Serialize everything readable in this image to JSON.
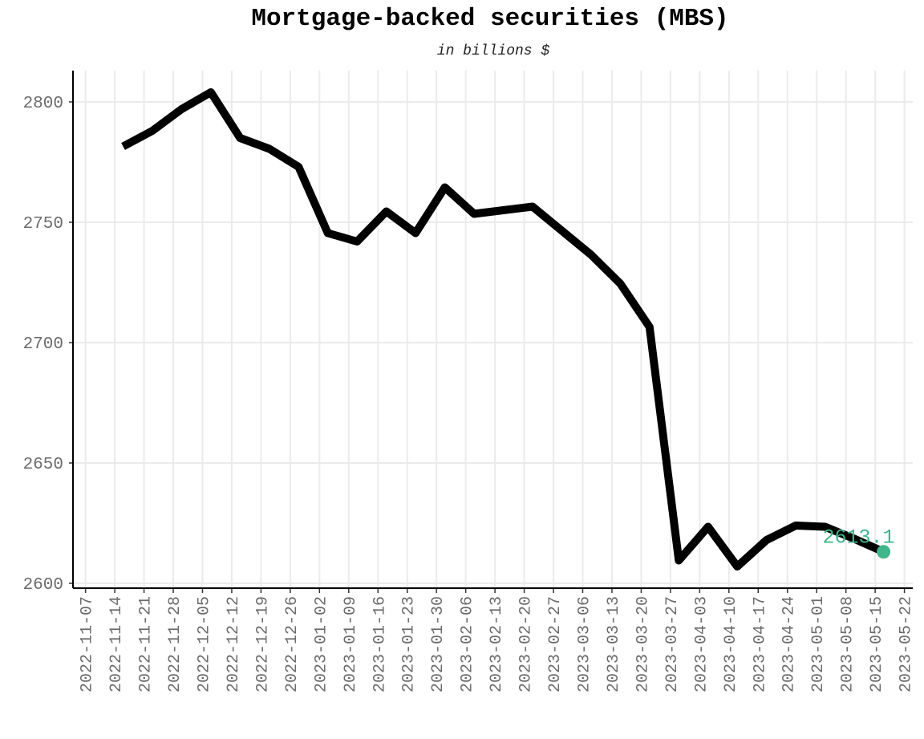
{
  "chart_data": {
    "type": "line",
    "title": "Mortgage-backed securities (MBS)",
    "subtitle": "in billions $",
    "xlabel": "",
    "ylabel": "",
    "x_ticks": [
      "2022-11-07",
      "2022-11-14",
      "2022-11-21",
      "2022-11-28",
      "2022-12-05",
      "2022-12-12",
      "2022-12-19",
      "2022-12-26",
      "2023-01-02",
      "2023-01-09",
      "2023-01-16",
      "2023-01-23",
      "2023-01-30",
      "2023-02-06",
      "2023-02-13",
      "2023-02-20",
      "2023-02-27",
      "2023-03-06",
      "2023-03-13",
      "2023-03-20",
      "2023-03-27",
      "2023-04-03",
      "2023-04-10",
      "2023-04-17",
      "2023-04-24",
      "2023-05-01",
      "2023-05-08",
      "2023-05-15",
      "2023-05-22"
    ],
    "y_ticks": [
      2600,
      2650,
      2700,
      2750,
      2800
    ],
    "ylim": [
      2598,
      2813
    ],
    "grid": true,
    "series": [
      {
        "color": "#000000",
        "points": [
          {
            "x": "2022-11-16",
            "y": 2781.5
          },
          {
            "x": "2022-11-23",
            "y": 2788.0
          },
          {
            "x": "2022-11-30",
            "y": 2797.0
          },
          {
            "x": "2022-12-07",
            "y": 2804.0
          },
          {
            "x": "2022-12-14",
            "y": 2785.0
          },
          {
            "x": "2022-12-21",
            "y": 2780.5
          },
          {
            "x": "2022-12-28",
            "y": 2773.0
          },
          {
            "x": "2023-01-04",
            "y": 2745.5
          },
          {
            "x": "2023-01-11",
            "y": 2742.0
          },
          {
            "x": "2023-01-18",
            "y": 2754.5
          },
          {
            "x": "2023-01-25",
            "y": 2745.5
          },
          {
            "x": "2023-02-01",
            "y": 2764.5
          },
          {
            "x": "2023-02-08",
            "y": 2753.5
          },
          {
            "x": "2023-02-15",
            "y": 2755.0
          },
          {
            "x": "2023-02-22",
            "y": 2756.5
          },
          {
            "x": "2023-03-01",
            "y": 2746.5
          },
          {
            "x": "2023-03-08",
            "y": 2736.5
          },
          {
            "x": "2023-03-15",
            "y": 2724.5
          },
          {
            "x": "2023-03-22",
            "y": 2706.5
          },
          {
            "x": "2023-03-29",
            "y": 2609.5
          },
          {
            "x": "2023-04-05",
            "y": 2623.5
          },
          {
            "x": "2023-04-12",
            "y": 2607.0
          },
          {
            "x": "2023-04-19",
            "y": 2618.0
          },
          {
            "x": "2023-04-26",
            "y": 2624.0
          },
          {
            "x": "2023-05-03",
            "y": 2623.5
          },
          {
            "x": "2023-05-10",
            "y": 2618.5
          },
          {
            "x": "2023-05-17",
            "y": 2613.1
          }
        ]
      }
    ],
    "last_point": {
      "x": "2023-05-17",
      "y": 2613.1,
      "label": "2613.1",
      "color": "#3fb68b"
    }
  }
}
